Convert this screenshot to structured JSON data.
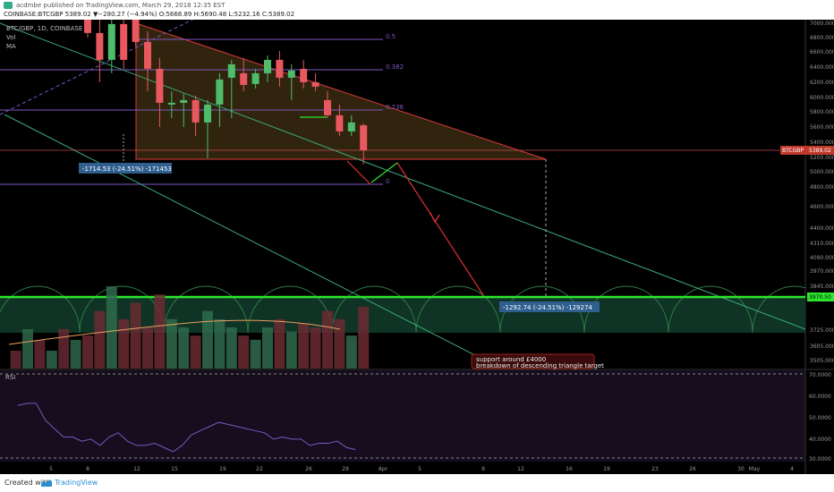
{
  "header": {
    "author": "acdmbe",
    "published": "published on TradingView.com, March 29, 2018 12:35 EST",
    "symbol": "COINBASE:BTCGBP",
    "ohlc": "5389.02 ▼−280.27 (−4.94%) O:5668.89 H:5690.48 L:5232.16 C:5389.02"
  },
  "legend": {
    "pair": "BTC/GBP, 1D, COINBASE",
    "vol": "Vol",
    "ma": "MA",
    "rsi": "RSI"
  },
  "fib_labels": [
    "0.5",
    "0.382",
    "0.236",
    "0"
  ],
  "callouts": {
    "drop1": "-1714.53 (-24.51%) -171453",
    "drop2": "-1292.74 (-24.51%) -129274",
    "note_line1": "support around £4000",
    "note_line2": "breakdown of descending triangle target"
  },
  "price_tags": {
    "last": "5389.02",
    "last_symbol": "BTCGBP",
    "support": "3970.50"
  },
  "footer": {
    "created": "Created with",
    "brand": "TradingView"
  },
  "colors": {
    "up": "#4dbd6b",
    "down": "#e8585e",
    "fib": "#7e57c2",
    "support": "#2ee62e",
    "triangle": "#d83a3a"
  },
  "chart_data": {
    "type": "candlestick",
    "price_axis_ticks": [
      7000,
      6800,
      6600,
      6400,
      6200,
      6000,
      5800,
      5600,
      5400,
      5200,
      5000,
      4800,
      4600,
      4400,
      4310,
      4090,
      3970,
      3845,
      3725,
      3605,
      3505
    ],
    "rsi_axis_ticks": [
      "70.0000",
      "60.0000",
      "50.0000",
      "40.0000",
      "30.0000"
    ],
    "x_tick_labels": [
      "5",
      "8",
      "12",
      "15",
      "19",
      "22",
      "26",
      "29",
      "Apr",
      "5",
      "9",
      "12",
      "16",
      "19",
      "23",
      "26",
      "30",
      "May",
      "4"
    ],
    "candles": [
      {
        "o": 6900,
        "h": 7050,
        "l": 6650,
        "c": 6700
      },
      {
        "o": 6700,
        "h": 6850,
        "l": 6150,
        "c": 6400
      },
      {
        "o": 6400,
        "h": 6900,
        "l": 6250,
        "c": 6800
      },
      {
        "o": 6800,
        "h": 6950,
        "l": 6300,
        "c": 6400
      },
      {
        "o": 6900,
        "h": 7000,
        "l": 6550,
        "c": 6600
      },
      {
        "o": 6600,
        "h": 6720,
        "l": 6050,
        "c": 6300
      },
      {
        "o": 6300,
        "h": 6420,
        "l": 5650,
        "c": 5920
      },
      {
        "o": 5900,
        "h": 6050,
        "l": 5750,
        "c": 5920
      },
      {
        "o": 5920,
        "h": 6020,
        "l": 5650,
        "c": 5950
      },
      {
        "o": 5950,
        "h": 6000,
        "l": 5550,
        "c": 5700
      },
      {
        "o": 5700,
        "h": 5950,
        "l": 5300,
        "c": 5900
      },
      {
        "o": 5900,
        "h": 6250,
        "l": 5650,
        "c": 6180
      },
      {
        "o": 6200,
        "h": 6400,
        "l": 5750,
        "c": 6350
      },
      {
        "o": 6250,
        "h": 6420,
        "l": 6050,
        "c": 6120
      },
      {
        "o": 6130,
        "h": 6300,
        "l": 6080,
        "c": 6250
      },
      {
        "o": 6250,
        "h": 6450,
        "l": 6150,
        "c": 6400
      },
      {
        "o": 6400,
        "h": 6500,
        "l": 6100,
        "c": 6200
      },
      {
        "o": 6200,
        "h": 6350,
        "l": 5950,
        "c": 6280
      },
      {
        "o": 6300,
        "h": 6400,
        "l": 6080,
        "c": 6150
      },
      {
        "o": 6150,
        "h": 6250,
        "l": 6050,
        "c": 6100
      },
      {
        "o": 5950,
        "h": 6050,
        "l": 5750,
        "c": 5780
      },
      {
        "o": 5780,
        "h": 5900,
        "l": 5550,
        "c": 5600
      },
      {
        "o": 5600,
        "h": 5780,
        "l": 5550,
        "c": 5700
      },
      {
        "o": 5669,
        "h": 5690,
        "l": 5232,
        "c": 5389
      }
    ],
    "volume_relative": [
      0.4,
      0.7,
      1.0,
      0.6,
      0.8,
      0.5,
      0.9,
      0.6,
      0.5,
      0.4,
      0.7,
      0.6,
      0.5,
      0.4,
      0.35,
      0.5,
      0.6,
      0.45,
      0.55,
      0.5,
      0.7,
      0.6,
      0.4,
      0.75
    ],
    "rsi_values": [
      55,
      56,
      56,
      48,
      44,
      40,
      40,
      38,
      39,
      36,
      40,
      42,
      38,
      36,
      36,
      37,
      35,
      33,
      36,
      41,
      43,
      45,
      47,
      46,
      45,
      44,
      43,
      42,
      39,
      40,
      39,
      39,
      36,
      37,
      37,
      38,
      35,
      34
    ]
  }
}
